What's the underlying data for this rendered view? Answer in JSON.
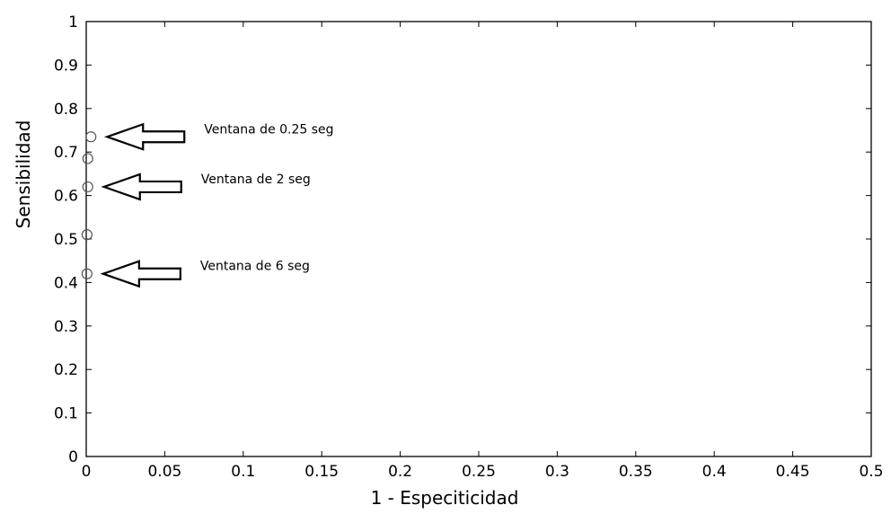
{
  "chart_data": {
    "type": "scatter",
    "title": "",
    "xlabel": "1 - Especiticidad",
    "ylabel": "Sensibilidad",
    "xlim": [
      0,
      0.5
    ],
    "ylim": [
      0,
      1
    ],
    "xticks": [
      "0",
      "0.05",
      "0.1",
      "0.15",
      "0.2",
      "0.25",
      "0.3",
      "0.35",
      "0.4",
      "0.45",
      "0.5"
    ],
    "yticks": [
      "0",
      "0.1",
      "0.2",
      "0.3",
      "0.4",
      "0.5",
      "0.6",
      "0.7",
      "0.8",
      "0.9",
      "1"
    ],
    "grid": false,
    "marker": "open-circle",
    "points": [
      {
        "x": 0.003,
        "y": 0.735
      },
      {
        "x": 0.001,
        "y": 0.685
      },
      {
        "x": 0.001,
        "y": 0.62
      },
      {
        "x": 0.0005,
        "y": 0.51
      },
      {
        "x": 0.0005,
        "y": 0.42
      }
    ],
    "annotations": [
      {
        "text": "Ventana de 0.25 seg",
        "x": 0.003,
        "y": 0.735
      },
      {
        "text": "Ventana de 2 seg",
        "x": 0.001,
        "y": 0.62
      },
      {
        "text": "Ventana de 6 seg",
        "x": 0.0005,
        "y": 0.42
      }
    ]
  }
}
